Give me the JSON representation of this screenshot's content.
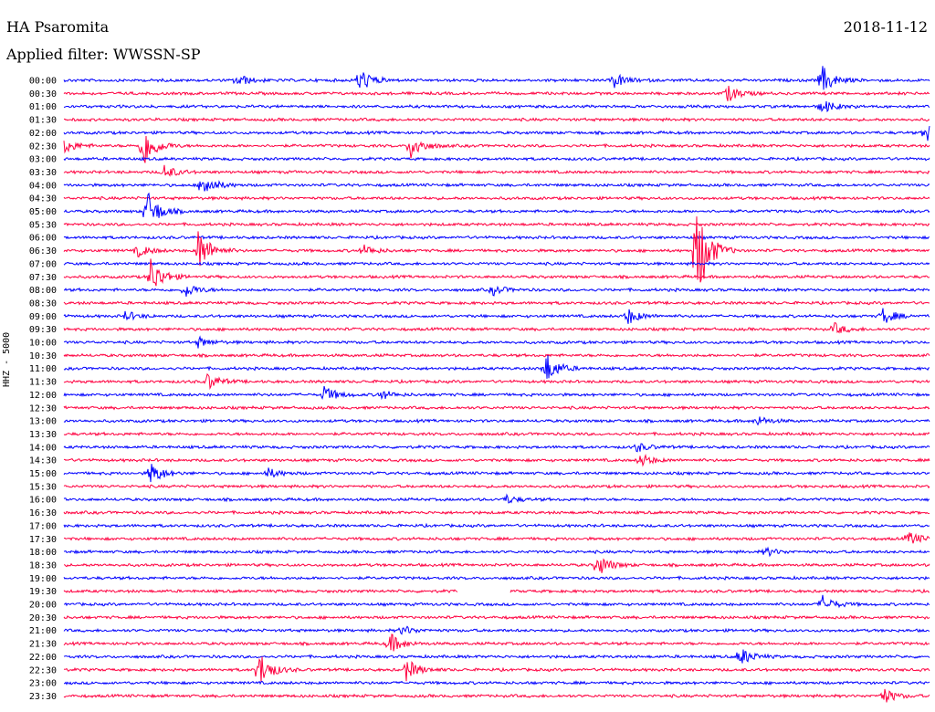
{
  "header": {
    "station": "HA Psaromita",
    "date": "2018-11-12",
    "filter_label": "Applied filter: WWSSN-SP"
  },
  "chart_data": {
    "type": "line",
    "title": "HA Psaromita",
    "subtitle": "Applied filter: WWSSN-SP",
    "ylabel": "HHZ - 5000",
    "xlabel": "",
    "grid": false,
    "trace_interval_minutes": 30,
    "series": [
      {
        "name": "blue traces",
        "color": "#0000ff"
      },
      {
        "name": "red traces",
        "color": "#ff0040"
      }
    ],
    "time_labels": [
      "00:00",
      "00:30",
      "01:00",
      "01:30",
      "02:00",
      "02:30",
      "03:00",
      "03:30",
      "04:00",
      "04:30",
      "05:00",
      "05:30",
      "06:00",
      "06:30",
      "07:00",
      "07:30",
      "08:00",
      "08:30",
      "09:00",
      "09:30",
      "10:00",
      "10:30",
      "11:00",
      "11:30",
      "12:00",
      "12:30",
      "13:00",
      "13:30",
      "14:00",
      "14:30",
      "15:00",
      "15:30",
      "16:00",
      "16:30",
      "17:00",
      "17:30",
      "18:00",
      "18:30",
      "19:00",
      "19:30",
      "20:00",
      "20:30",
      "21:00",
      "21:30",
      "22:00",
      "22:30",
      "23:00",
      "23:30"
    ],
    "events": [
      {
        "row": 0,
        "x": 0.2,
        "amp": 1.0
      },
      {
        "row": 0,
        "x": 0.34,
        "amp": 2.2
      },
      {
        "row": 0,
        "x": 0.635,
        "amp": 1.2
      },
      {
        "row": 0,
        "x": 0.875,
        "amp": 2.4
      },
      {
        "row": 1,
        "x": 0.765,
        "amp": 1.5
      },
      {
        "row": 2,
        "x": 0.875,
        "amp": 1.2
      },
      {
        "row": 4,
        "x": 0.995,
        "amp": 1.8
      },
      {
        "row": 5,
        "x": 0.0,
        "amp": 1.2
      },
      {
        "row": 5,
        "x": 0.4,
        "amp": 2.2
      },
      {
        "row": 5,
        "x": 0.09,
        "amp": 4.0
      },
      {
        "row": 7,
        "x": 0.115,
        "amp": 1.2
      },
      {
        "row": 8,
        "x": 0.16,
        "amp": 2.0
      },
      {
        "row": 10,
        "x": 0.095,
        "amp": 3.5
      },
      {
        "row": 13,
        "x": 0.155,
        "amp": 3.5
      },
      {
        "row": 13,
        "x": 0.085,
        "amp": 1.0
      },
      {
        "row": 13,
        "x": 0.345,
        "amp": 0.9
      },
      {
        "row": 13,
        "x": 0.73,
        "amp": 9.0
      },
      {
        "row": 15,
        "x": 0.1,
        "amp": 3.0
      },
      {
        "row": 16,
        "x": 0.14,
        "amp": 1.2
      },
      {
        "row": 16,
        "x": 0.495,
        "amp": 0.8
      },
      {
        "row": 18,
        "x": 0.07,
        "amp": 0.8
      },
      {
        "row": 18,
        "x": 0.65,
        "amp": 1.4
      },
      {
        "row": 18,
        "x": 0.945,
        "amp": 1.4
      },
      {
        "row": 19,
        "x": 0.89,
        "amp": 0.9
      },
      {
        "row": 20,
        "x": 0.155,
        "amp": 0.8
      },
      {
        "row": 22,
        "x": 0.555,
        "amp": 2.8
      },
      {
        "row": 23,
        "x": 0.165,
        "amp": 1.4
      },
      {
        "row": 24,
        "x": 0.3,
        "amp": 1.4
      },
      {
        "row": 24,
        "x": 0.365,
        "amp": 0.8
      },
      {
        "row": 26,
        "x": 0.8,
        "amp": 0.8
      },
      {
        "row": 28,
        "x": 0.66,
        "amp": 0.8
      },
      {
        "row": 29,
        "x": 0.665,
        "amp": 1.1
      },
      {
        "row": 30,
        "x": 0.1,
        "amp": 1.8
      },
      {
        "row": 30,
        "x": 0.235,
        "amp": 0.8
      },
      {
        "row": 32,
        "x": 0.51,
        "amp": 0.7
      },
      {
        "row": 35,
        "x": 0.975,
        "amp": 1.2
      },
      {
        "row": 36,
        "x": 0.81,
        "amp": 0.7
      },
      {
        "row": 37,
        "x": 0.615,
        "amp": 2.0
      },
      {
        "row": 40,
        "x": 0.875,
        "amp": 1.5
      },
      {
        "row": 42,
        "x": 0.39,
        "amp": 0.8
      },
      {
        "row": 43,
        "x": 0.375,
        "amp": 1.8
      },
      {
        "row": 44,
        "x": 0.78,
        "amp": 1.6
      },
      {
        "row": 45,
        "x": 0.225,
        "amp": 3.0
      },
      {
        "row": 45,
        "x": 0.395,
        "amp": 1.8
      },
      {
        "row": 47,
        "x": 0.945,
        "amp": 1.4
      }
    ],
    "data_gaps": [
      {
        "row": 39,
        "x_start": 0.455,
        "x_end": 0.515
      }
    ]
  }
}
